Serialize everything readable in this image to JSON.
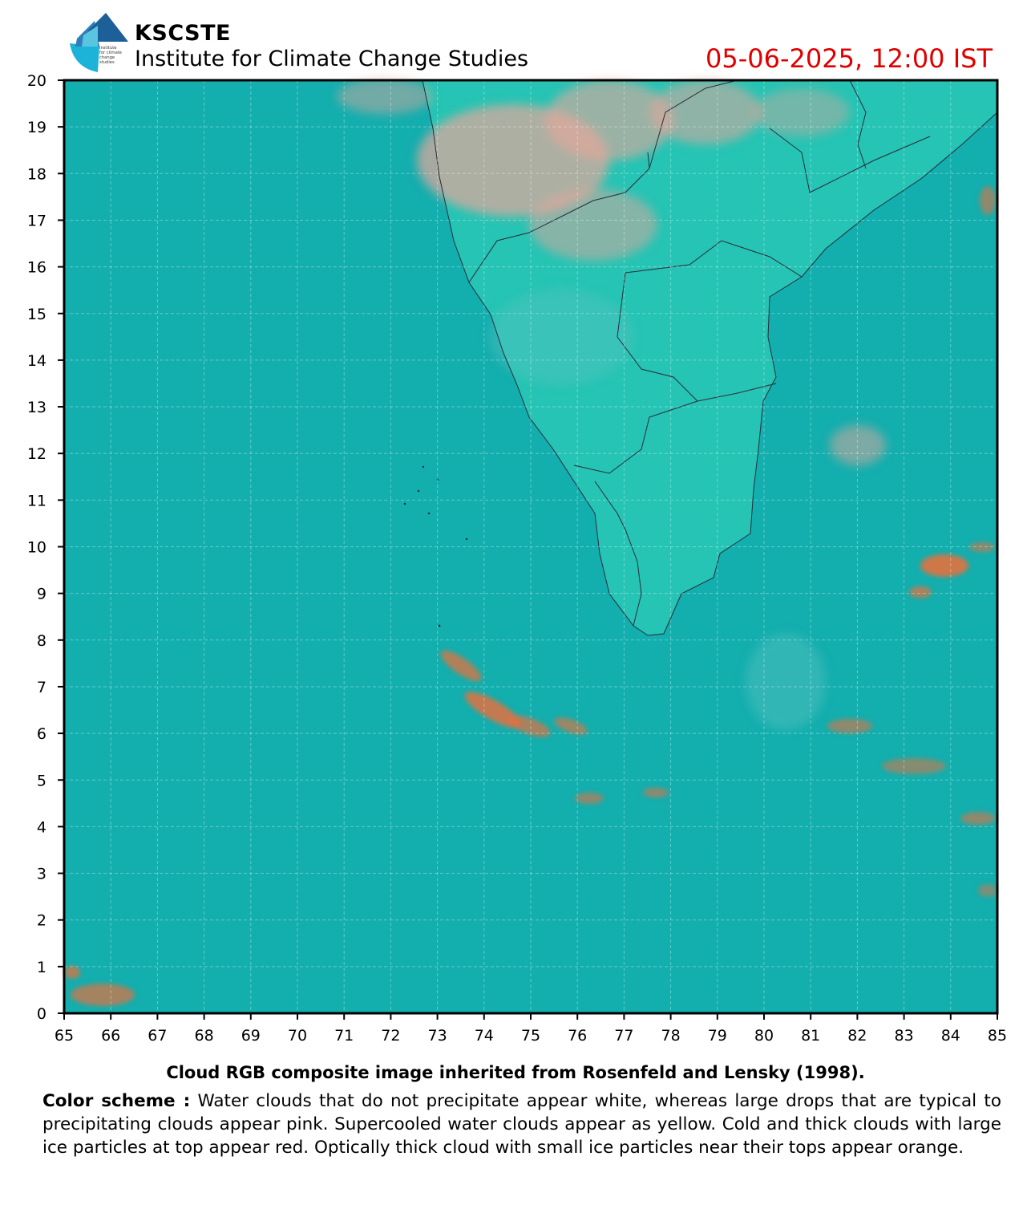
{
  "header": {
    "org_name": "KSCSTE",
    "org_subtitle": "Institute for Climate Change Studies",
    "logo_text": "institute for climate change studies",
    "timestamp": "05-06-2025, 12:00 IST",
    "timestamp_color": "#e00000"
  },
  "map": {
    "x_ticks": [
      "65",
      "66",
      "67",
      "68",
      "69",
      "70",
      "71",
      "72",
      "73",
      "74",
      "75",
      "76",
      "77",
      "78",
      "79",
      "80",
      "81",
      "82",
      "83",
      "84",
      "85"
    ],
    "y_ticks": [
      "0",
      "1",
      "2",
      "3",
      "4",
      "5",
      "6",
      "7",
      "8",
      "9",
      "10",
      "11",
      "12",
      "13",
      "14",
      "15",
      "16",
      "17",
      "18",
      "19",
      "20"
    ],
    "lon_range": [
      65,
      85
    ],
    "lat_range": [
      0,
      20
    ],
    "grid": true,
    "colors": {
      "ocean": "#13aeae",
      "land": "#25c4b4",
      "border": "#2b2b3a",
      "cloud_pink": "#e7a69b",
      "cloud_orange": "#e3713f",
      "cloud_faint": "#62c3c0"
    }
  },
  "caption": "Cloud RGB composite image inherited from Rosenfeld and Lensky (1998).",
  "legend": {
    "label": "Color scheme :",
    "text": "Water clouds that do not precipitate appear white, whereas large drops that are typical to precipitating clouds appear pink. Supercooled water clouds appear as yellow. Cold and thick clouds with large ice particles at top appear red. Optically thick cloud with small ice particles near their tops appear orange."
  }
}
